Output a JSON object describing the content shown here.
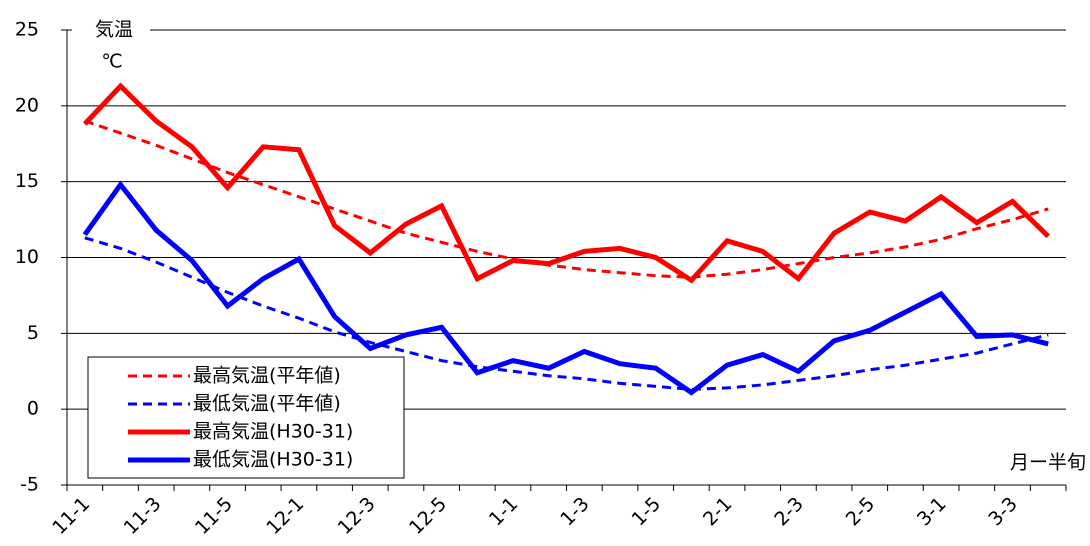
{
  "chart_data": {
    "type": "line",
    "y_label": "気温",
    "y_unit": "℃",
    "x_label": "月ー半旬",
    "categories": [
      "11-1",
      null,
      "11-3",
      null,
      "11-5",
      null,
      "12-1",
      null,
      "12-3",
      null,
      "12-5",
      null,
      "1-1",
      null,
      "1-3",
      null,
      "1-5",
      null,
      "2-1",
      null,
      "2-3",
      null,
      "2-5",
      null,
      "3-1",
      null,
      "3-3",
      null
    ],
    "ylim": [
      -5,
      25
    ],
    "yticks": [
      -5,
      0,
      5,
      10,
      15,
      20,
      25
    ],
    "grid": true,
    "series": [
      {
        "name": "最高気温(平年値)",
        "color": "#ff0000",
        "style": "dashed",
        "values": [
          19.0,
          18.2,
          17.4,
          16.5,
          15.6,
          14.8,
          14.0,
          13.2,
          12.4,
          11.6,
          11.0,
          10.4,
          9.9,
          9.5,
          9.2,
          9.0,
          8.8,
          8.7,
          8.9,
          9.2,
          9.6,
          10.0,
          10.3,
          10.7,
          11.2,
          11.9,
          12.5,
          13.2
        ]
      },
      {
        "name": "最低気温(平年値)",
        "color": "#0000ff",
        "style": "dashed",
        "values": [
          11.3,
          10.6,
          9.7,
          8.7,
          7.7,
          6.8,
          6.0,
          5.1,
          4.4,
          3.8,
          3.2,
          2.8,
          2.5,
          2.2,
          2.0,
          1.7,
          1.5,
          1.3,
          1.4,
          1.6,
          1.9,
          2.2,
          2.6,
          2.9,
          3.3,
          3.7,
          4.3,
          4.9
        ]
      },
      {
        "name": "最高気温(H30-31)",
        "color": "#ff0000",
        "style": "solid",
        "values": [
          18.8,
          21.3,
          19.0,
          17.3,
          14.6,
          17.3,
          17.1,
          12.1,
          10.3,
          12.2,
          13.4,
          8.6,
          9.8,
          9.6,
          10.4,
          10.6,
          10.0,
          8.5,
          11.1,
          10.4,
          8.6,
          11.6,
          13.0,
          12.4,
          14.0,
          12.3,
          13.7,
          11.4
        ]
      },
      {
        "name": "最低気温(H30-31)",
        "color": "#0000ff",
        "style": "solid",
        "values": [
          11.5,
          14.8,
          11.8,
          9.8,
          6.8,
          8.6,
          9.9,
          6.1,
          4.0,
          4.9,
          5.4,
          2.4,
          3.2,
          2.7,
          3.8,
          3.0,
          2.7,
          1.1,
          2.9,
          3.6,
          2.5,
          4.5,
          5.2,
          6.4,
          7.6,
          4.8,
          4.9,
          4.3
        ]
      }
    ]
  }
}
